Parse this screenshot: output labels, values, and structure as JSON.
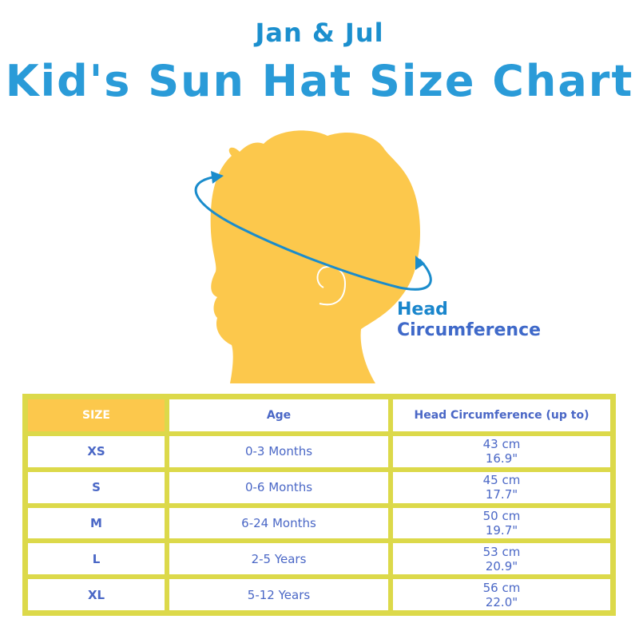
{
  "header": {
    "brand": "Jan & Jul",
    "title": "Kid's Sun Hat Size Chart"
  },
  "figure": {
    "label_line1": "Head",
    "label_line2": "Circumference",
    "silhouette_color": "#fcc84c",
    "arrow_color": "#1a8ccc"
  },
  "table": {
    "columns": [
      "SIZE",
      "Age",
      "Head Circumference (up to)"
    ],
    "rows": [
      {
        "size": "XS",
        "age": "0-3 Months",
        "cm": "43 cm",
        "in": "16.9\""
      },
      {
        "size": "S",
        "age": "0-6 Months",
        "cm": "45 cm",
        "in": "17.7\""
      },
      {
        "size": "M",
        "age": "6-24 Months",
        "cm": "50 cm",
        "in": "19.7\""
      },
      {
        "size": "L",
        "age": "2-5 Years",
        "cm": "53 cm",
        "in": "20.9\""
      },
      {
        "size": "XL",
        "age": "5-12 Years",
        "cm": "56 cm",
        "in": "22.0\""
      }
    ],
    "border_color": "#dcd94a",
    "header_color": "#fcc84c",
    "text_color": "#4a67c6"
  }
}
